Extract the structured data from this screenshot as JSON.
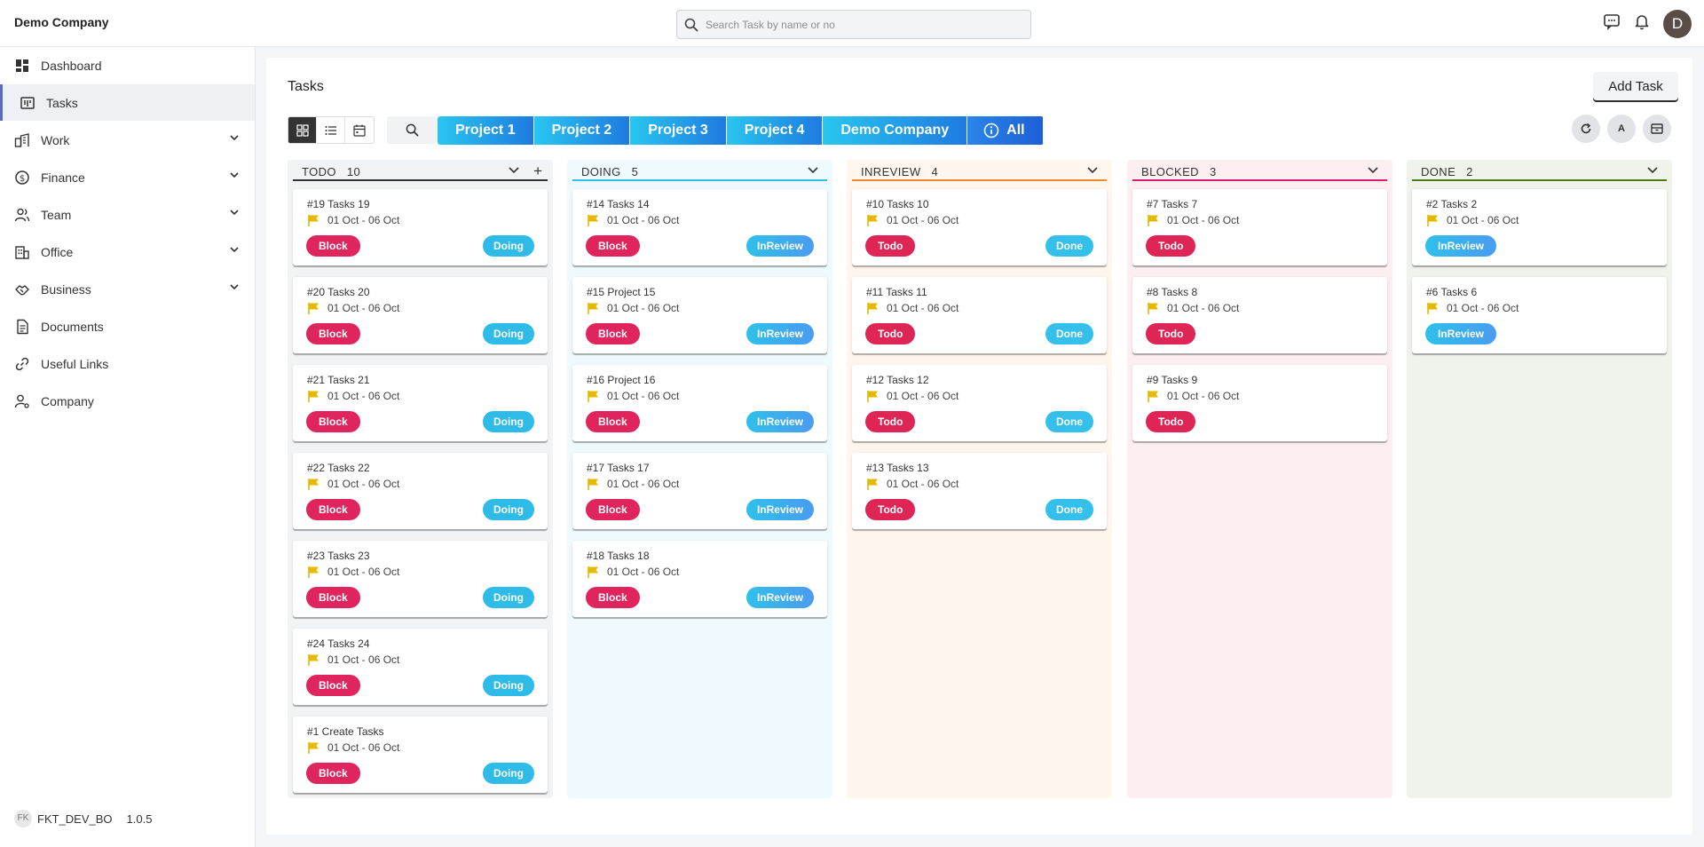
{
  "app": {
    "company": "Demo Company",
    "search_placeholder": "Search Task by name or no",
    "avatar_initial": "D",
    "icons": [
      "chat-icon",
      "bell-icon"
    ]
  },
  "sidebar": {
    "items": [
      {
        "label": "Dashboard",
        "icon": "dashboard-icon",
        "expandable": false,
        "active": false
      },
      {
        "label": "Tasks",
        "icon": "board-icon",
        "expandable": false,
        "active": true
      },
      {
        "label": "Work",
        "icon": "work-icon",
        "expandable": true,
        "active": false
      },
      {
        "label": "Finance",
        "icon": "dollar-icon",
        "expandable": true,
        "active": false
      },
      {
        "label": "Team",
        "icon": "team-icon",
        "expandable": true,
        "active": false
      },
      {
        "label": "Office",
        "icon": "building-icon",
        "expandable": true,
        "active": false
      },
      {
        "label": "Business",
        "icon": "handshake-icon",
        "expandable": true,
        "active": false
      },
      {
        "label": "Documents",
        "icon": "document-icon",
        "expandable": false,
        "active": false
      },
      {
        "label": "Useful Links",
        "icon": "link-icon",
        "expandable": false,
        "active": false
      },
      {
        "label": "Company",
        "icon": "company-user-icon",
        "expandable": false,
        "active": false
      }
    ],
    "footer": {
      "logo_text": "FK",
      "app_name": "FKT_DEV_BO",
      "version": "1.0.5"
    }
  },
  "main": {
    "title": "Tasks",
    "add_task_label": "Add Task",
    "filters": [
      {
        "label": "Project 1"
      },
      {
        "label": "Project 2"
      },
      {
        "label": "Project 3"
      },
      {
        "label": "Project 4"
      },
      {
        "label": "Demo Company"
      },
      {
        "label": "All",
        "icon": "info-icon"
      }
    ],
    "round_buttons": [
      {
        "name": "refresh-button",
        "icon": "refresh-icon",
        "text": ""
      },
      {
        "name": "assignee-button",
        "icon": "",
        "text": "A"
      },
      {
        "name": "archive-button",
        "icon": "archive-icon",
        "text": ""
      }
    ]
  },
  "colors": {
    "block": "#e0245e",
    "doing": "#2ebbe8",
    "inreview_grad": [
      "#2fc0ea",
      "#4a9cf0"
    ],
    "done": "#35c0ec",
    "todo": "#df2456",
    "flag": "#e6b800"
  },
  "board": {
    "columns": [
      {
        "title": "TODO",
        "count": "10",
        "has_add": true,
        "bg": "#f2f3f5",
        "line": "#333333",
        "cards": [
          {
            "title": "#19 Tasks 19",
            "date": "01 Oct - 06 Oct",
            "left": "Block",
            "right": "Doing"
          },
          {
            "title": "#20 Tasks 20",
            "date": "01 Oct - 06 Oct",
            "left": "Block",
            "right": "Doing"
          },
          {
            "title": "#21 Tasks 21",
            "date": "01 Oct - 06 Oct",
            "left": "Block",
            "right": "Doing"
          },
          {
            "title": "#22 Tasks 22",
            "date": "01 Oct - 06 Oct",
            "left": "Block",
            "right": "Doing"
          },
          {
            "title": "#23 Tasks 23",
            "date": "01 Oct - 06 Oct",
            "left": "Block",
            "right": "Doing"
          },
          {
            "title": "#24 Tasks 24",
            "date": "01 Oct - 06 Oct",
            "left": "Block",
            "right": "Doing"
          },
          {
            "title": "#1 Create Tasks",
            "date": "01 Oct - 06 Oct",
            "left": "Block",
            "right": "Doing"
          }
        ]
      },
      {
        "title": "DOING",
        "count": "5",
        "has_add": false,
        "bg": "#eefafd",
        "line": "#2ec3e6",
        "cards": [
          {
            "title": "#14 Tasks 14",
            "date": "01 Oct - 06 Oct",
            "left": "Block",
            "right": "InReview"
          },
          {
            "title": "#15 Project 15",
            "date": "01 Oct - 06 Oct",
            "left": "Block",
            "right": "InReview"
          },
          {
            "title": "#16 Project 16",
            "date": "01 Oct - 06 Oct",
            "left": "Block",
            "right": "InReview"
          },
          {
            "title": "#17 Tasks 17",
            "date": "01 Oct - 06 Oct",
            "left": "Block",
            "right": "InReview"
          },
          {
            "title": "#18 Tasks 18",
            "date": "01 Oct - 06 Oct",
            "left": "Block",
            "right": "InReview"
          }
        ]
      },
      {
        "title": "INREVIEW",
        "count": "4",
        "has_add": false,
        "bg": "#fff6ee",
        "line": "#f08a2e",
        "cards": [
          {
            "title": "#10 Tasks 10",
            "date": "01 Oct - 06 Oct",
            "left": "Todo",
            "right": "Done"
          },
          {
            "title": "#11 Tasks 11",
            "date": "01 Oct - 06 Oct",
            "left": "Todo",
            "right": "Done"
          },
          {
            "title": "#12 Tasks 12",
            "date": "01 Oct - 06 Oct",
            "left": "Todo",
            "right": "Done"
          },
          {
            "title": "#13 Tasks 13",
            "date": "01 Oct - 06 Oct",
            "left": "Todo",
            "right": "Done"
          }
        ]
      },
      {
        "title": "BLOCKED",
        "count": "3",
        "has_add": false,
        "bg": "#fdeef1",
        "line": "#d81f67",
        "cards": [
          {
            "title": "#7 Tasks 7",
            "date": "01 Oct - 06 Oct",
            "left": "Todo",
            "right": ""
          },
          {
            "title": "#8 Tasks 8",
            "date": "01 Oct - 06 Oct",
            "left": "Todo",
            "right": ""
          },
          {
            "title": "#9 Tasks 9",
            "date": "01 Oct - 06 Oct",
            "left": "Todo",
            "right": ""
          }
        ]
      },
      {
        "title": "DONE",
        "count": "2",
        "has_add": false,
        "bg": "#f0f2ec",
        "line": "#4f7a17",
        "cards": [
          {
            "title": "#2 Tasks 2",
            "date": "01 Oct - 06 Oct",
            "left": "InReview",
            "right": ""
          },
          {
            "title": "#6 Tasks 6",
            "date": "01 Oct - 06 Oct",
            "left": "InReview",
            "right": ""
          }
        ]
      }
    ]
  }
}
